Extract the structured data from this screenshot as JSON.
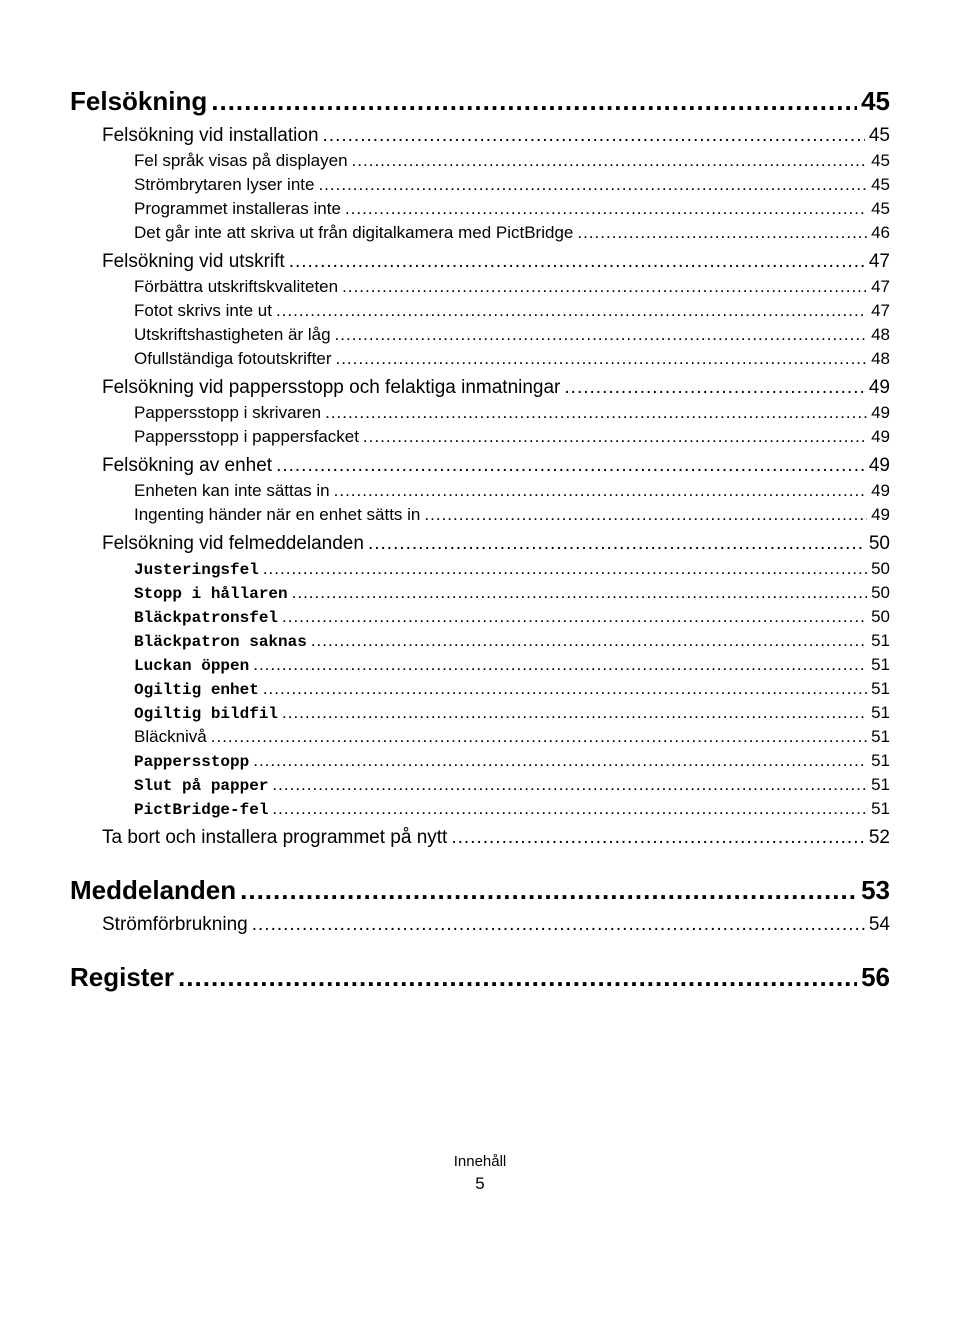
{
  "entries": [
    {
      "label": "Felsökning",
      "page": "45",
      "level": "lvl0",
      "mono": false,
      "name": "toc-felsokning"
    },
    {
      "label": "Felsökning vid installation",
      "page": "45",
      "level": "lvl1",
      "mono": false,
      "name": "toc-felsokning-vid-installation"
    },
    {
      "label": "Fel språk visas på displayen",
      "page": "45",
      "level": "lvl2",
      "mono": false,
      "name": "toc-fel-sprak"
    },
    {
      "label": "Strömbrytaren lyser inte",
      "page": "45",
      "level": "lvl2",
      "mono": false,
      "name": "toc-strombrytaren"
    },
    {
      "label": "Programmet installeras inte",
      "page": "45",
      "level": "lvl2",
      "mono": false,
      "name": "toc-programmet-installeras-inte"
    },
    {
      "label": "Det går inte att skriva ut från digitalkamera med PictBridge",
      "page": "46",
      "level": "lvl2",
      "mono": false,
      "name": "toc-pictbridge"
    },
    {
      "label": "Felsökning vid utskrift",
      "page": "47",
      "level": "lvl1",
      "mono": false,
      "name": "toc-felsokning-vid-utskrift"
    },
    {
      "label": "Förbättra utskriftskvaliteten",
      "page": "47",
      "level": "lvl2",
      "mono": false,
      "name": "toc-forbattra-utskriftskvaliteten"
    },
    {
      "label": "Fotot skrivs inte ut",
      "page": "47",
      "level": "lvl2",
      "mono": false,
      "name": "toc-fotot-skrivs-inte-ut"
    },
    {
      "label": "Utskriftshastigheten är låg",
      "page": "48",
      "level": "lvl2",
      "mono": false,
      "name": "toc-utskriftshastigheten"
    },
    {
      "label": "Ofullständiga fotoutskrifter",
      "page": "48",
      "level": "lvl2",
      "mono": false,
      "name": "toc-ofullstandiga"
    },
    {
      "label": "Felsökning vid pappersstopp och felaktiga inmatningar",
      "page": "49",
      "level": "lvl1",
      "mono": false,
      "name": "toc-pappersstopp-inmatningar"
    },
    {
      "label": "Pappersstopp i skrivaren",
      "page": "49",
      "level": "lvl2",
      "mono": false,
      "name": "toc-pappersstopp-skrivaren"
    },
    {
      "label": "Pappersstopp i pappersfacket",
      "page": "49",
      "level": "lvl2",
      "mono": false,
      "name": "toc-pappersstopp-pappersfacket"
    },
    {
      "label": "Felsökning av enhet",
      "page": "49",
      "level": "lvl1",
      "mono": false,
      "name": "toc-felsokning-av-enhet"
    },
    {
      "label": "Enheten kan inte sättas in",
      "page": "49",
      "level": "lvl2",
      "mono": false,
      "name": "toc-enheten-kan-inte"
    },
    {
      "label": "Ingenting händer när en enhet sätts in",
      "page": "49",
      "level": "lvl2",
      "mono": false,
      "name": "toc-ingenting-hander"
    },
    {
      "label": "Felsökning vid felmeddelanden",
      "page": "50",
      "level": "lvl1",
      "mono": false,
      "name": "toc-felsokning-vid-felmeddelanden"
    },
    {
      "label": "Justeringsfel",
      "page": "50",
      "level": "lvl2",
      "mono": true,
      "name": "toc-justeringsfel"
    },
    {
      "label": "Stopp i hållaren",
      "page": "50",
      "level": "lvl2",
      "mono": true,
      "name": "toc-stopp-i-hallaren"
    },
    {
      "label": "Bläckpatronsfel",
      "page": "50",
      "level": "lvl2",
      "mono": true,
      "name": "toc-blackpatronsfel"
    },
    {
      "label": "Bläckpatron saknas",
      "page": "51",
      "level": "lvl2",
      "mono": true,
      "name": "toc-blackpatron-saknas"
    },
    {
      "label": "Luckan öppen",
      "page": "51",
      "level": "lvl2",
      "mono": true,
      "name": "toc-luckan-oppen"
    },
    {
      "label": "Ogiltig enhet",
      "page": "51",
      "level": "lvl2",
      "mono": true,
      "name": "toc-ogiltig-enhet"
    },
    {
      "label": "Ogiltig bildfil",
      "page": "51",
      "level": "lvl2",
      "mono": true,
      "name": "toc-ogiltig-bildfil"
    },
    {
      "label": "Bläcknivå",
      "page": "51",
      "level": "lvl2",
      "mono": false,
      "name": "toc-blackniva"
    },
    {
      "label": "Pappersstopp",
      "page": "51",
      "level": "lvl2",
      "mono": true,
      "name": "toc-pappersstopp"
    },
    {
      "label": "Slut på papper",
      "page": "51",
      "level": "lvl2",
      "mono": true,
      "name": "toc-slut-pa-papper"
    },
    {
      "label": "PictBridge-fel",
      "page": "51",
      "level": "lvl2",
      "mono": true,
      "name": "toc-pictbridge-fel"
    },
    {
      "label": "Ta bort och installera programmet på nytt",
      "page": "52",
      "level": "lvl1",
      "mono": false,
      "name": "toc-ta-bort-installera"
    },
    {
      "label": "Meddelanden",
      "page": "53",
      "level": "lvl0",
      "mono": false,
      "name": "toc-meddelanden"
    },
    {
      "label": "Strömförbrukning",
      "page": "54",
      "level": "lvl1",
      "mono": false,
      "name": "toc-stromforbrukning"
    },
    {
      "label": "Register",
      "page": "56",
      "level": "lvl0",
      "mono": false,
      "name": "toc-register"
    }
  ],
  "footer": {
    "section": "Innehåll",
    "page": "5"
  }
}
